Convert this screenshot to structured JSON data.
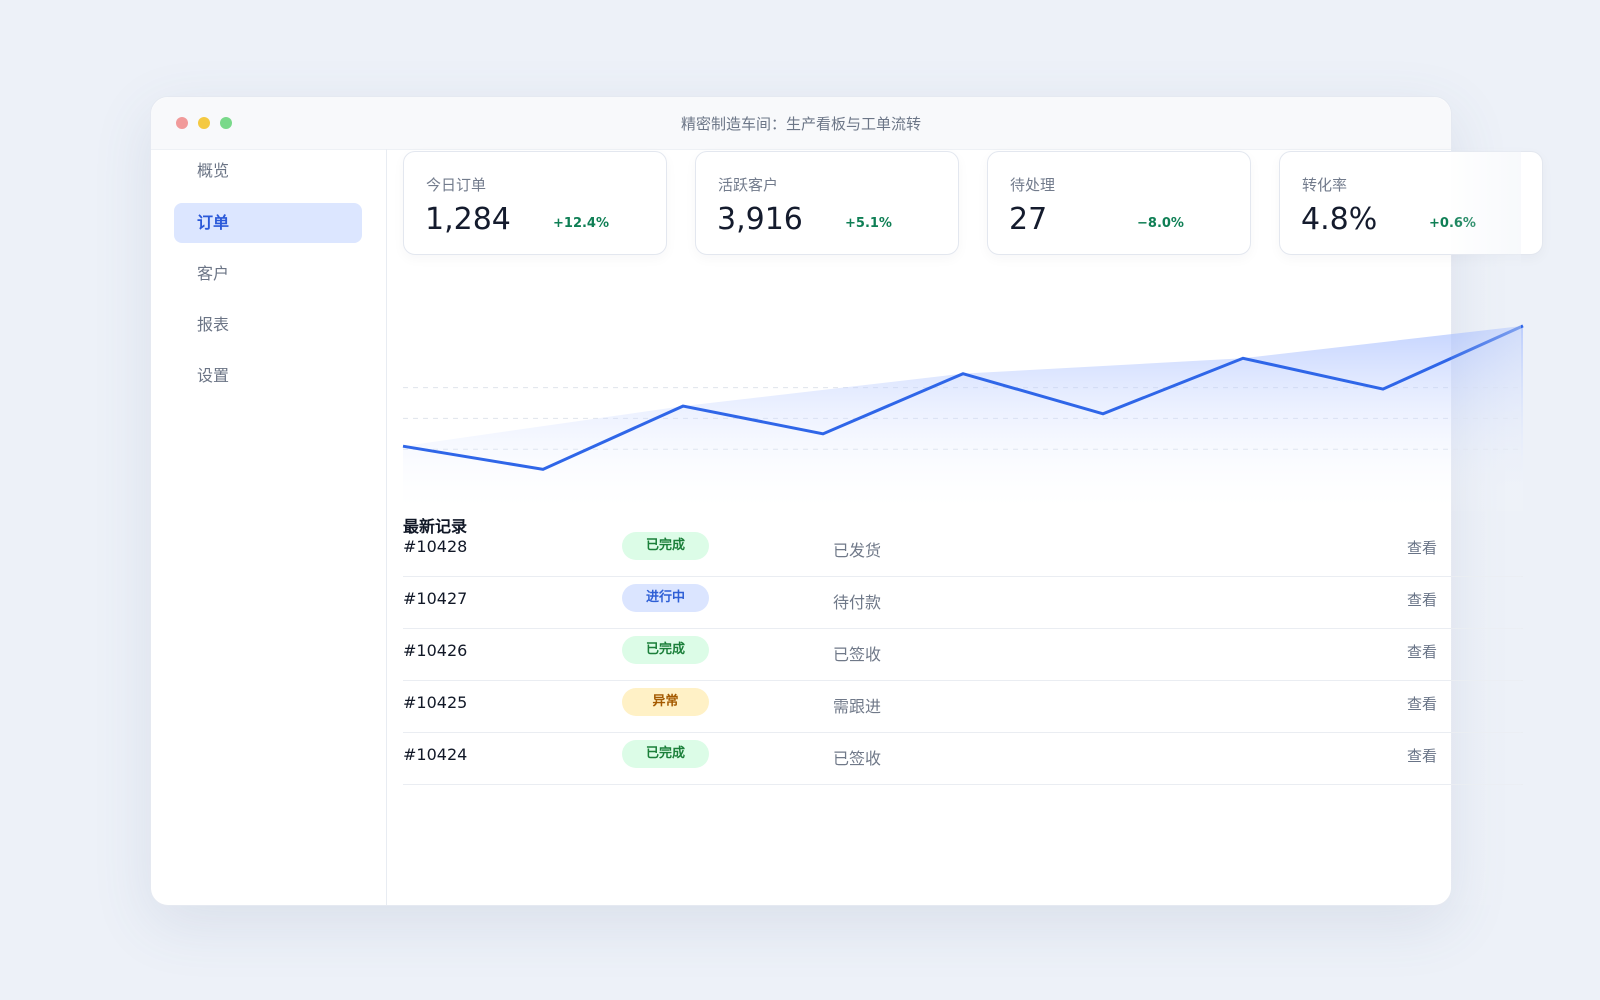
{
  "window": {
    "title": "精密制造车间：生产看板与工单流转"
  },
  "sidebar": {
    "items": [
      {
        "label": "概览",
        "active": false
      },
      {
        "label": "订单",
        "active": true
      },
      {
        "label": "客户",
        "active": false
      },
      {
        "label": "报表",
        "active": false
      },
      {
        "label": "设置",
        "active": false
      }
    ]
  },
  "metrics": [
    {
      "label": "今日订单",
      "value": "1,284",
      "delta": "+12.4%"
    },
    {
      "label": "活跃客户",
      "value": "3,916",
      "delta": "+5.1%"
    },
    {
      "label": "待处理",
      "value": "27",
      "delta": "−8.0%"
    },
    {
      "label": "转化率",
      "value": "4.8%",
      "delta": "+0.6%"
    }
  ],
  "chart_data": {
    "type": "area",
    "x": [
      1,
      2,
      3,
      4,
      5,
      6,
      7,
      8,
      9
    ],
    "values": [
      42,
      27,
      68,
      50,
      89,
      63,
      99,
      79,
      120
    ],
    "ylim": [
      0,
      140
    ],
    "grid": true,
    "line_color": "#2f66e8",
    "fill_color": "#8fb0ff"
  },
  "records": {
    "title": "最新记录",
    "rows": [
      {
        "id": "#10428",
        "status": "已完成",
        "status_color": "green",
        "note": "已发货",
        "action": "查看"
      },
      {
        "id": "#10427",
        "status": "进行中",
        "status_color": "blue",
        "note": "待付款",
        "action": "查看"
      },
      {
        "id": "#10426",
        "status": "已完成",
        "status_color": "green",
        "note": "已签收",
        "action": "查看"
      },
      {
        "id": "#10425",
        "status": "异常",
        "status_color": "amber",
        "note": "需跟进",
        "action": "查看"
      },
      {
        "id": "#10424",
        "status": "已完成",
        "status_color": "green",
        "note": "已签收",
        "action": "查看"
      }
    ]
  }
}
